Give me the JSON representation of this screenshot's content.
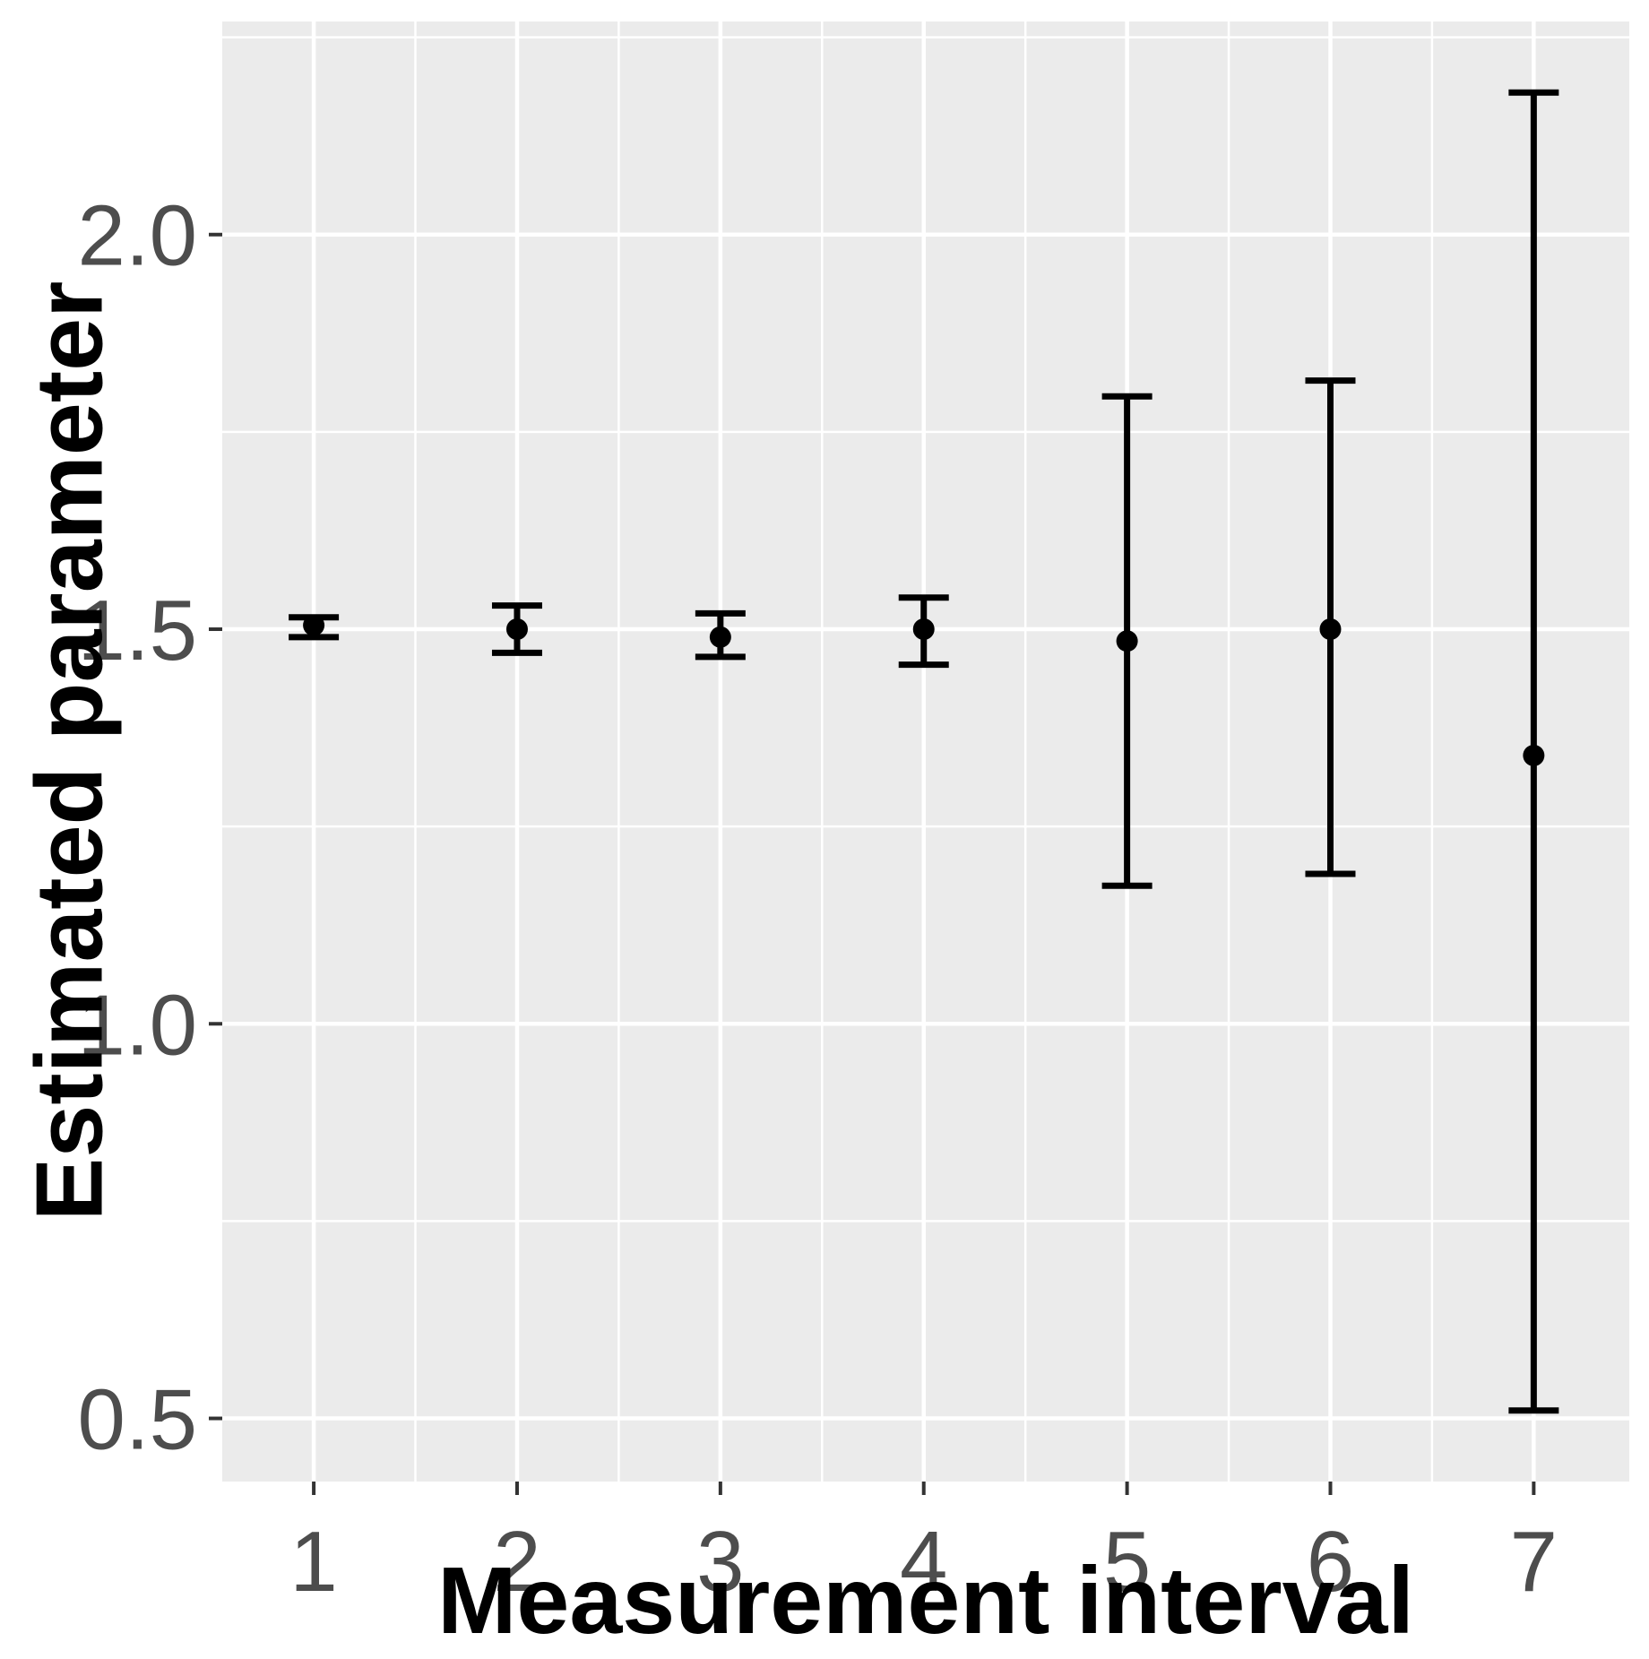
{
  "chart_data": {
    "type": "scatter",
    "subtype": "points-with-error-bars",
    "title": "",
    "xlabel": "Measurement interval",
    "ylabel": "Estimated parameter",
    "x": [
      1,
      2,
      3,
      4,
      5,
      6,
      7
    ],
    "x_tick_labels": [
      "1",
      "2",
      "3",
      "4",
      "5",
      "6",
      "7"
    ],
    "series": [
      {
        "name": "estimated-parameter",
        "points": [
          1.505,
          1.5,
          1.49,
          1.5,
          1.485,
          1.5,
          1.34
        ],
        "ci_low": [
          1.49,
          1.47,
          1.465,
          1.455,
          1.175,
          1.19,
          0.51
        ],
        "ci_high": [
          1.515,
          1.53,
          1.52,
          1.54,
          1.795,
          1.815,
          2.18
        ]
      }
    ],
    "y_ticks": [
      0.5,
      1.0,
      1.5,
      2.0
    ],
    "y_tick_labels": [
      "0.5",
      "1.0",
      "1.5",
      "2.0"
    ],
    "y_minor_ticks": [
      0.75,
      1.25,
      1.75,
      2.25
    ],
    "x_minor_ticks": [
      0.5,
      1.5,
      2.5,
      3.5,
      4.5,
      5.5,
      6.5,
      7.5
    ],
    "xlim": [
      0.55,
      7.47
    ],
    "ylim": [
      0.42,
      2.27
    ],
    "grid": true,
    "legend_position": "none"
  },
  "style": {
    "panel_background": "#EBEBEB",
    "figure_background": "#FFFFFF",
    "gridline_color": "#FFFFFF",
    "tick_label_color": "#4D4D4D",
    "tick_mark_color": "#333333",
    "axis_title_color": "#000000",
    "data_color": "#000000"
  }
}
